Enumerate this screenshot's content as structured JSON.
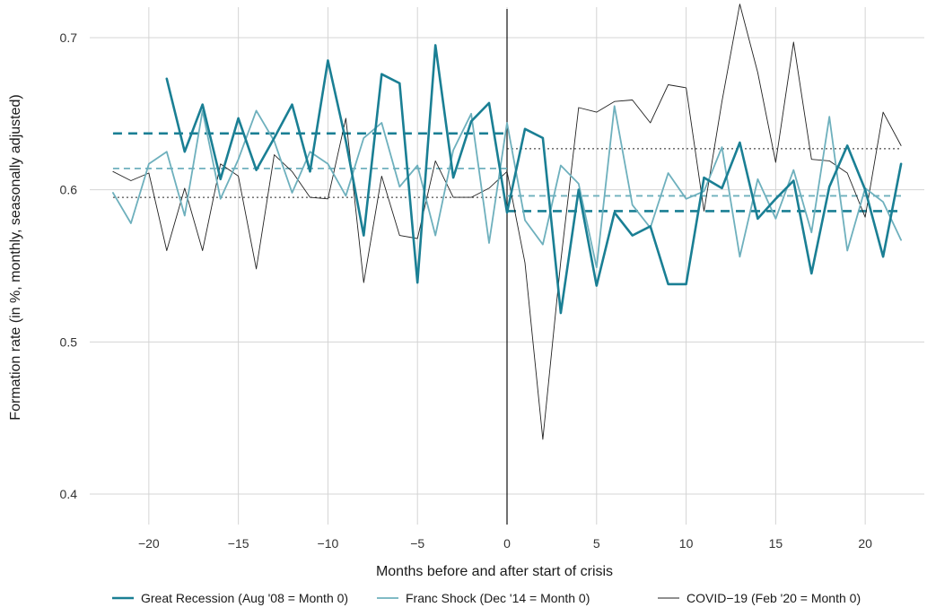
{
  "chart_data": {
    "type": "line",
    "xlabel": "Months before and after start of crisis",
    "ylabel": "Formation rate (in %, monthly, seasonally adjusted)",
    "xlim": [
      -23.3,
      23.3
    ],
    "ylim": [
      0.38,
      0.72
    ],
    "x_ticks": [
      -20,
      -15,
      -10,
      -5,
      0,
      5,
      10,
      15,
      20
    ],
    "x_tick_labels": [
      "−20",
      "−15",
      "−10",
      "−5",
      "0",
      "5",
      "10",
      "15",
      "20"
    ],
    "y_ticks": [
      0.4,
      0.5,
      0.6,
      0.7
    ],
    "y_tick_labels": [
      "0.4",
      "0.5",
      "0.6",
      "0.7"
    ],
    "grid": true,
    "legend_position": "bottom",
    "crisis_start_x": 0,
    "series": [
      {
        "key": "great_recession",
        "name": "Great Recession (Aug '08 = Month 0)",
        "color": "#1a7f94",
        "style": "thick",
        "x": [
          -19,
          -18,
          -17,
          -16,
          -15,
          -14,
          -13,
          -12,
          -11,
          -10,
          -9,
          -8,
          -7,
          -6,
          -5,
          -4,
          -3,
          -2,
          -1,
          0,
          1,
          2,
          3,
          4,
          5,
          6,
          7,
          8,
          9,
          10,
          11,
          12,
          13,
          14,
          15,
          16,
          17,
          18,
          19,
          20,
          21,
          22
        ],
        "y": [
          0.673,
          0.625,
          0.656,
          0.607,
          0.647,
          0.613,
          0.634,
          0.656,
          0.612,
          0.685,
          0.632,
          0.57,
          0.676,
          0.67,
          0.539,
          0.695,
          0.608,
          0.645,
          0.657,
          0.585,
          0.64,
          0.634,
          0.519,
          0.6,
          0.537,
          0.585,
          0.57,
          0.576,
          0.538,
          0.538,
          0.608,
          0.601,
          0.631,
          0.581,
          0.594,
          0.606,
          0.545,
          0.602,
          0.629,
          0.6,
          0.556,
          0.617
        ],
        "pre_mean": 0.637,
        "post_mean": 0.586
      },
      {
        "key": "franc_shock",
        "name": "Franc Shock (Dec '14 = Month 0)",
        "color": "#6eb0bd",
        "style": "medium",
        "x": [
          -22,
          -21,
          -20,
          -19,
          -18,
          -17,
          -16,
          -15,
          -14,
          -13,
          -12,
          -11,
          -10,
          -9,
          -8,
          -7,
          -6,
          -5,
          -4,
          -3,
          -2,
          -1,
          0,
          1,
          2,
          3,
          4,
          5,
          6,
          7,
          8,
          9,
          10,
          11,
          12,
          13,
          14,
          15,
          16,
          17,
          18,
          19,
          20,
          21,
          22
        ],
        "y": [
          0.598,
          0.578,
          0.617,
          0.625,
          0.583,
          0.652,
          0.594,
          0.62,
          0.652,
          0.632,
          0.598,
          0.625,
          0.617,
          0.596,
          0.634,
          0.644,
          0.602,
          0.616,
          0.57,
          0.626,
          0.65,
          0.565,
          0.644,
          0.58,
          0.564,
          0.616,
          0.604,
          0.549,
          0.655,
          0.59,
          0.575,
          0.611,
          0.594,
          0.599,
          0.628,
          0.556,
          0.607,
          0.581,
          0.613,
          0.572,
          0.648,
          0.56,
          0.601,
          0.592,
          0.567
        ],
        "pre_mean": 0.614,
        "post_mean": 0.596
      },
      {
        "key": "covid",
        "name": "COVID−19 (Feb '20 = Month 0)",
        "color": "#222222",
        "style": "thin",
        "x": [
          -22,
          -21,
          -20,
          -19,
          -18,
          -17,
          -16,
          -15,
          -14,
          -13,
          -12,
          -11,
          -10,
          -9,
          -8,
          -7,
          -6,
          -5,
          -4,
          -3,
          -2,
          -1,
          0,
          1,
          2,
          3,
          4,
          5,
          6,
          7,
          8,
          9,
          10,
          11,
          12,
          13,
          14,
          15,
          16,
          17,
          18,
          19,
          20,
          21,
          22
        ],
        "y": [
          0.612,
          0.606,
          0.611,
          0.56,
          0.601,
          0.56,
          0.617,
          0.609,
          0.548,
          0.623,
          0.612,
          0.595,
          0.594,
          0.647,
          0.539,
          0.609,
          0.57,
          0.568,
          0.619,
          0.595,
          0.595,
          0.601,
          0.612,
          0.552,
          0.436,
          0.553,
          0.654,
          0.651,
          0.658,
          0.659,
          0.644,
          0.669,
          0.667,
          0.586,
          0.658,
          0.722,
          0.677,
          0.618,
          0.697,
          0.62,
          0.619,
          0.611,
          0.582,
          0.651,
          0.629
        ],
        "pre_mean": 0.595,
        "post_mean": 0.627
      }
    ]
  }
}
